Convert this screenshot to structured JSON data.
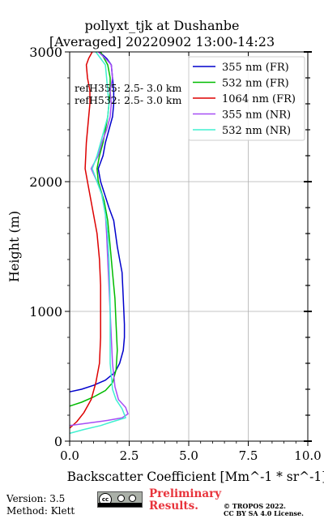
{
  "title": {
    "line1": "pollyxt_tjk at Dushanbe",
    "line2": "[Averaged] 20220902 13:00-14:23"
  },
  "footer": {
    "version": "Version: 3.5",
    "method": "Method: Klett",
    "preliminary_line1": "Preliminary",
    "preliminary_line2": "Results.",
    "copyright_line1": "© TROPOS 2022.",
    "copyright_line2": "CC BY SA 4.0 License.",
    "license_badge_text": "cc BY SA"
  },
  "colors": {
    "preliminary": "#e8333b",
    "grid": "#b0b0b0"
  },
  "chart_data": {
    "type": "line",
    "xlabel": "Backscatter Coefficient [Mm^-1 * sr^-1]",
    "ylabel": "Height (m)",
    "xlim": [
      0,
      10
    ],
    "ylim": [
      0,
      3000
    ],
    "xticks": [
      0,
      2.5,
      5,
      7.5,
      10
    ],
    "xtick_labels": [
      "0.0",
      "2.5",
      "5.0",
      "7.5",
      "10.0"
    ],
    "yticks": [
      0,
      1000,
      2000,
      3000
    ],
    "ytick_labels": [
      "0",
      "1000",
      "2000",
      "3000"
    ],
    "grid": true,
    "legend_position": "top-right",
    "annotations": [
      "refH355:  2.5- 3.0 km",
      "refH532:  2.5- 3.0 km"
    ],
    "series": [
      {
        "name": "355 nm (FR)",
        "color": "#0000cc",
        "points": [
          [
            0,
            380
          ],
          [
            0.5,
            400
          ],
          [
            1.0,
            430
          ],
          [
            1.5,
            470
          ],
          [
            1.9,
            530
          ],
          [
            2.1,
            600
          ],
          [
            2.25,
            700
          ],
          [
            2.3,
            800
          ],
          [
            2.3,
            900
          ],
          [
            2.25,
            1100
          ],
          [
            2.2,
            1300
          ],
          [
            2.1,
            1400
          ],
          [
            2.0,
            1500
          ],
          [
            1.85,
            1700
          ],
          [
            1.65,
            1800
          ],
          [
            1.3,
            2000
          ],
          [
            1.2,
            2100
          ],
          [
            1.4,
            2200
          ],
          [
            1.5,
            2300
          ],
          [
            1.65,
            2400
          ],
          [
            1.8,
            2500
          ],
          [
            1.85,
            2600
          ],
          [
            1.85,
            2700
          ],
          [
            1.8,
            2800
          ],
          [
            1.75,
            2900
          ],
          [
            1.55,
            2950
          ],
          [
            1.25,
            3000
          ]
        ]
      },
      {
        "name": "532 nm (FR)",
        "color": "#00bb00",
        "points": [
          [
            0,
            270
          ],
          [
            0.5,
            300
          ],
          [
            1.0,
            340
          ],
          [
            1.5,
            390
          ],
          [
            1.8,
            450
          ],
          [
            1.95,
            550
          ],
          [
            2.0,
            700
          ],
          [
            1.95,
            900
          ],
          [
            1.9,
            1100
          ],
          [
            1.8,
            1300
          ],
          [
            1.7,
            1500
          ],
          [
            1.6,
            1700
          ],
          [
            1.45,
            1850
          ],
          [
            1.2,
            2000
          ],
          [
            1.15,
            2100
          ],
          [
            1.25,
            2200
          ],
          [
            1.4,
            2300
          ],
          [
            1.5,
            2400
          ],
          [
            1.6,
            2500
          ],
          [
            1.65,
            2600
          ],
          [
            1.7,
            2700
          ],
          [
            1.7,
            2800
          ],
          [
            1.6,
            2900
          ],
          [
            1.45,
            2950
          ],
          [
            1.3,
            3000
          ]
        ]
      },
      {
        "name": "1064 nm (FR)",
        "color": "#dd0000",
        "points": [
          [
            0,
            100
          ],
          [
            0.3,
            150
          ],
          [
            0.6,
            220
          ],
          [
            0.9,
            320
          ],
          [
            1.1,
            450
          ],
          [
            1.25,
            600
          ],
          [
            1.3,
            800
          ],
          [
            1.3,
            1000
          ],
          [
            1.3,
            1200
          ],
          [
            1.25,
            1400
          ],
          [
            1.15,
            1600
          ],
          [
            0.95,
            1800
          ],
          [
            0.75,
            2000
          ],
          [
            0.65,
            2100
          ],
          [
            0.7,
            2300
          ],
          [
            0.8,
            2500
          ],
          [
            0.85,
            2600
          ],
          [
            0.85,
            2700
          ],
          [
            0.75,
            2800
          ],
          [
            0.7,
            2900
          ],
          [
            0.8,
            2950
          ],
          [
            0.95,
            3000
          ]
        ]
      },
      {
        "name": "355 nm (NR)",
        "color": "#a64df5",
        "points": [
          [
            0,
            120
          ],
          [
            0.8,
            140
          ],
          [
            1.6,
            160
          ],
          [
            2.2,
            180
          ],
          [
            2.45,
            210
          ],
          [
            2.35,
            260
          ],
          [
            2.05,
            320
          ],
          [
            1.9,
            420
          ],
          [
            1.8,
            600
          ],
          [
            1.75,
            800
          ],
          [
            1.7,
            1000
          ],
          [
            1.65,
            1200
          ],
          [
            1.6,
            1400
          ],
          [
            1.55,
            1600
          ],
          [
            1.5,
            1750
          ],
          [
            1.35,
            1900
          ],
          [
            1.15,
            2000
          ],
          [
            0.9,
            2100
          ],
          [
            1.2,
            2200
          ],
          [
            1.35,
            2300
          ],
          [
            1.55,
            2400
          ],
          [
            1.7,
            2500
          ],
          [
            1.75,
            2600
          ],
          [
            1.7,
            2700
          ],
          [
            1.8,
            2800
          ],
          [
            1.75,
            2900
          ],
          [
            1.5,
            2950
          ],
          [
            1.2,
            3000
          ]
        ]
      },
      {
        "name": "532 nm (NR)",
        "color": "#40f0d0",
        "points": [
          [
            0,
            60
          ],
          [
            0.6,
            90
          ],
          [
            1.3,
            120
          ],
          [
            1.8,
            150
          ],
          [
            2.35,
            180
          ],
          [
            2.2,
            250
          ],
          [
            1.95,
            320
          ],
          [
            1.8,
            400
          ],
          [
            1.7,
            600
          ],
          [
            1.7,
            800
          ],
          [
            1.7,
            1000
          ],
          [
            1.68,
            1200
          ],
          [
            1.65,
            1400
          ],
          [
            1.6,
            1600
          ],
          [
            1.5,
            1750
          ],
          [
            1.35,
            1900
          ],
          [
            1.15,
            2000
          ],
          [
            0.95,
            2100
          ],
          [
            1.15,
            2200
          ],
          [
            1.3,
            2300
          ],
          [
            1.45,
            2400
          ],
          [
            1.6,
            2500
          ],
          [
            1.65,
            2600
          ],
          [
            1.6,
            2700
          ],
          [
            1.55,
            2800
          ],
          [
            1.5,
            2900
          ],
          [
            1.3,
            2950
          ],
          [
            1.1,
            3000
          ]
        ]
      }
    ]
  }
}
